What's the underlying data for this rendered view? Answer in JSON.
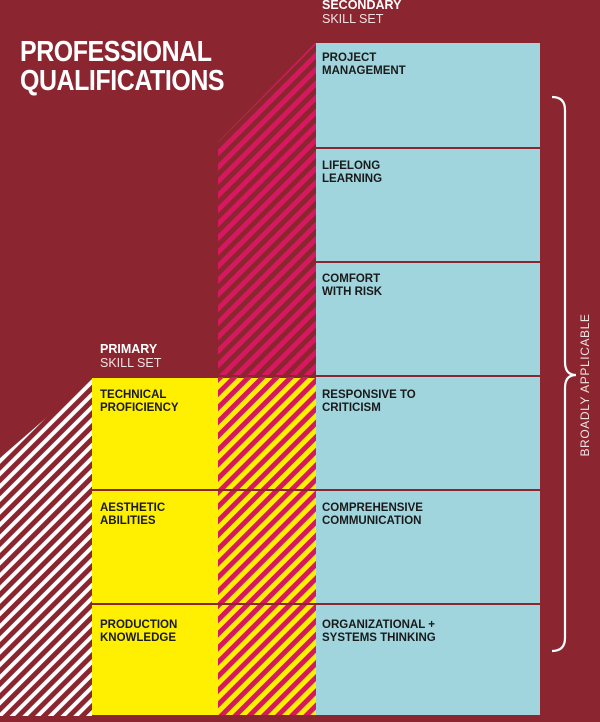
{
  "title": {
    "line1": "PROFESSIONAL",
    "line2": "QUALIFICATIONS"
  },
  "secondary": {
    "label": "SECONDARY",
    "sublabel": "SKILL SET"
  },
  "primary": {
    "label": "PRIMARY",
    "sublabel": "SKILL SET"
  },
  "secondary_skills": [
    {
      "line1": "PROJECT",
      "line2": "MANAGEMENT"
    },
    {
      "line1": "LIFELONG",
      "line2": "LEARNING"
    },
    {
      "line1": "COMFORT",
      "line2": "WITH RISK"
    },
    {
      "line1": "RESPONSIVE TO",
      "line2": "CRITICISM"
    },
    {
      "line1": "COMPREHENSIVE",
      "line2": "COMMUNICATION"
    },
    {
      "line1": "ORGANIZATIONAL +",
      "line2": "SYSTEMS THINKING"
    }
  ],
  "primary_skills": [
    {
      "line1": "TECHNICAL",
      "line2": "PROFICIENCY"
    },
    {
      "line1": "AESTHETIC",
      "line2": "ABILITIES"
    },
    {
      "line1": "PRODUCTION",
      "line2": "KNOWLEDGE"
    }
  ],
  "brace_label": "BROADLY APPLICABLE",
  "colors": {
    "background": "#8b2630",
    "secondary_fill": "#a0d5de",
    "primary_fill": "#ffef00",
    "stripe_magenta": "#d6185f",
    "stripe_white": "#ffffff"
  }
}
